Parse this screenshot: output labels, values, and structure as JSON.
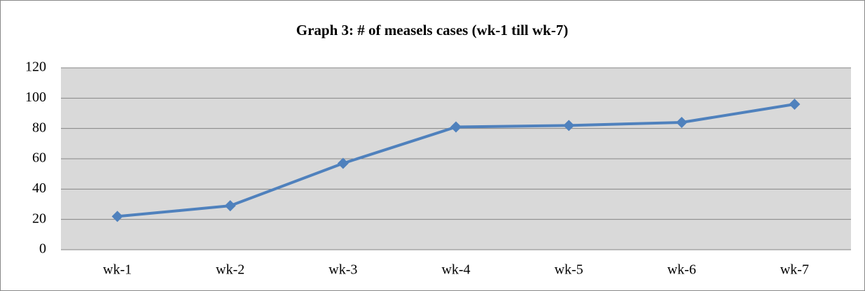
{
  "chart_data": {
    "type": "line",
    "title": "Graph 3: # of measels cases (wk-1 till wk-7)",
    "categories": [
      "wk-1",
      "wk-2",
      "wk-3",
      "wk-4",
      "wk-5",
      "wk-6",
      "wk-7"
    ],
    "series": [
      {
        "name": "measels cases",
        "color": "#4f81bd",
        "values": [
          22,
          29,
          57,
          81,
          82,
          84,
          96
        ]
      }
    ],
    "ylim": [
      0,
      120
    ],
    "yticks": [
      0,
      20,
      40,
      60,
      80,
      100,
      120
    ],
    "grid": true,
    "legend": "none"
  }
}
